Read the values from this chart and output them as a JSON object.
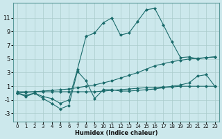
{
  "xlabel": "Humidex (Indice chaleur)",
  "bg_color": "#cce8ec",
  "grid_color": "#aacccc",
  "line_color": "#1a6b6b",
  "xlim": [
    -0.5,
    23.5
  ],
  "ylim": [
    -4.2,
    13.2
  ],
  "yticks": [
    -3,
    -1,
    1,
    3,
    5,
    7,
    9,
    11
  ],
  "xticks": [
    0,
    1,
    2,
    3,
    4,
    5,
    6,
    7,
    8,
    9,
    10,
    11,
    12,
    13,
    14,
    15,
    16,
    17,
    18,
    19,
    20,
    21,
    22,
    23
  ],
  "series": [
    {
      "x": [
        0,
        1,
        2,
        3,
        4,
        5,
        6,
        7,
        8,
        9,
        10,
        11,
        12,
        13,
        14,
        15,
        16,
        17,
        18,
        19,
        20,
        21,
        22,
        23
      ],
      "y": [
        0.2,
        0.2,
        0.2,
        0.2,
        0.2,
        0.2,
        0.2,
        0.2,
        0.2,
        0.2,
        0.3,
        0.4,
        0.5,
        0.6,
        0.7,
        0.8,
        0.8,
        0.9,
        0.9,
        1.0,
        1.0,
        1.0,
        1.0,
        1.0
      ],
      "marker": "D",
      "markersize": 2
    },
    {
      "x": [
        0,
        1,
        2,
        3,
        4,
        5,
        6,
        7,
        8,
        9,
        10,
        11,
        12,
        13,
        14,
        15,
        16,
        17,
        18,
        19,
        20,
        21,
        22,
        23
      ],
      "y": [
        0.0,
        0.1,
        0.2,
        0.3,
        0.4,
        0.5,
        0.6,
        0.8,
        1.0,
        1.2,
        1.5,
        1.8,
        2.2,
        2.6,
        3.0,
        3.5,
        4.0,
        4.3,
        4.6,
        4.8,
        5.0,
        5.1,
        5.2,
        5.3
      ],
      "marker": "D",
      "markersize": 2
    },
    {
      "x": [
        0,
        1,
        2,
        3,
        4,
        5,
        6,
        7,
        8,
        9,
        10,
        11,
        12,
        13,
        14,
        15,
        16,
        17,
        18,
        19,
        20,
        21,
        22,
        23
      ],
      "y": [
        0.0,
        -0.5,
        0.0,
        -0.8,
        -1.5,
        -2.3,
        -1.8,
        3.2,
        1.8,
        -0.8,
        0.5,
        0.5,
        0.3,
        0.3,
        0.4,
        0.5,
        0.6,
        0.8,
        1.0,
        1.2,
        1.5,
        2.5,
        2.7,
        1.0
      ],
      "marker": "D",
      "markersize": 2
    },
    {
      "x": [
        0,
        1,
        2,
        3,
        4,
        5,
        6,
        7,
        8,
        9,
        10,
        11,
        12,
        13,
        14,
        15,
        16,
        17,
        18,
        19,
        20,
        21,
        22,
        23
      ],
      "y": [
        0.0,
        -0.3,
        0.0,
        -0.5,
        -0.8,
        -1.5,
        -1.0,
        3.5,
        8.3,
        8.8,
        10.3,
        11.0,
        8.5,
        8.8,
        10.5,
        12.2,
        12.4,
        10.0,
        7.5,
        5.2,
        5.3,
        5.0,
        5.2,
        5.3
      ],
      "marker": "D",
      "markersize": 2
    }
  ]
}
